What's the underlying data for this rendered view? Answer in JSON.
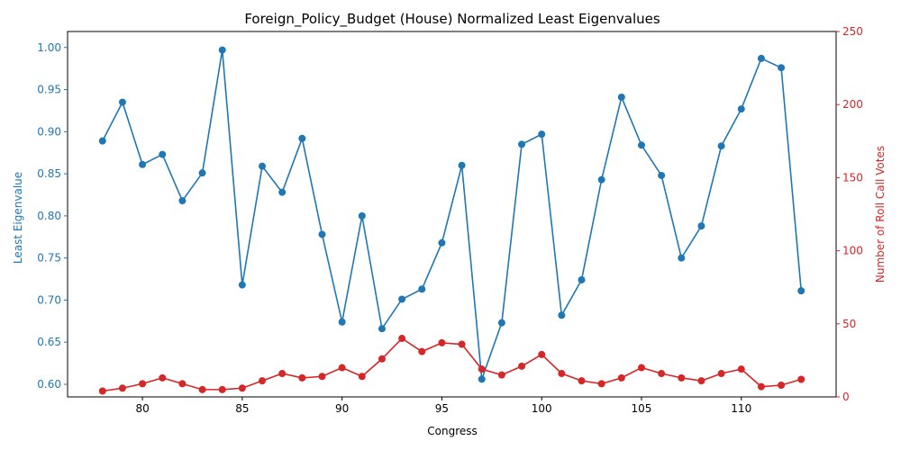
{
  "chart_data": {
    "type": "line",
    "title": "Foreign_Policy_Budget (House) Normalized Least Eigenvalues",
    "xlabel": "Congress",
    "x_ticks": [
      80,
      85,
      90,
      95,
      100,
      105,
      110
    ],
    "xlim": [
      76.25,
      114.75
    ],
    "left_axis": {
      "label": "Least Eigenvalue",
      "color": "#1f77b4",
      "ylim": [
        0.585,
        1.019
      ],
      "ticks": [
        "0.60",
        "0.65",
        "0.70",
        "0.75",
        "0.80",
        "0.85",
        "0.90",
        "0.95",
        "1.00"
      ]
    },
    "right_axis": {
      "label": "Number of Roll Call Votes",
      "color": "#d62728",
      "ylim": [
        0,
        250
      ],
      "ticks": [
        "0",
        "50",
        "100",
        "150",
        "200",
        "250"
      ]
    },
    "x": [
      78,
      79,
      80,
      81,
      82,
      83,
      84,
      85,
      86,
      87,
      88,
      89,
      90,
      91,
      92,
      93,
      94,
      95,
      96,
      97,
      98,
      99,
      100,
      101,
      102,
      103,
      104,
      105,
      106,
      107,
      108,
      109,
      110,
      111,
      112,
      113
    ],
    "series": [
      {
        "axis": "left",
        "color": "#1f77b4",
        "values": [
          0.889,
          0.935,
          0.861,
          0.873,
          0.818,
          0.851,
          0.997,
          0.718,
          0.859,
          0.828,
          0.892,
          0.778,
          0.674,
          0.8,
          0.666,
          0.701,
          0.713,
          0.768,
          0.86,
          0.606,
          0.673,
          0.885,
          0.897,
          0.682,
          0.724,
          0.843,
          0.941,
          0.884,
          0.848,
          0.75,
          0.788,
          0.883,
          0.927,
          0.987,
          0.976,
          0.711
        ]
      },
      {
        "axis": "right",
        "color": "#d62728",
        "values": [
          4,
          6,
          9,
          13,
          9,
          5,
          5,
          6,
          11,
          16,
          13,
          14,
          20,
          14,
          26,
          40,
          31,
          37,
          36,
          19,
          15,
          21,
          29,
          16,
          11,
          9,
          13,
          20,
          16,
          13,
          11,
          16,
          19,
          7,
          8,
          12
        ]
      }
    ]
  }
}
